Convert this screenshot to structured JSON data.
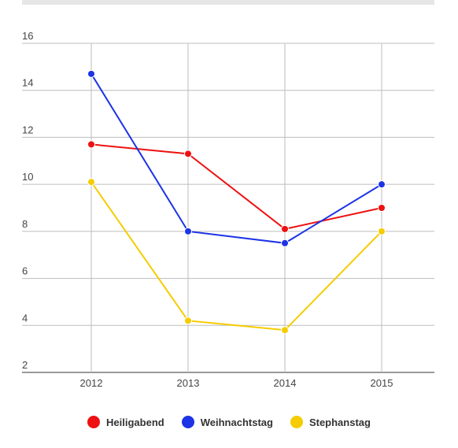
{
  "chart_data": {
    "type": "line",
    "categories": [
      "2012",
      "2013",
      "2014",
      "2015"
    ],
    "series": [
      {
        "name": "Heiligabend",
        "color": "#ee1111",
        "values": [
          11.7,
          11.3,
          8.1,
          9.0
        ]
      },
      {
        "name": "Weihnachtstag",
        "color": "#1c33e6",
        "values": [
          14.7,
          8.0,
          7.5,
          10.0
        ]
      },
      {
        "name": "Stephanstag",
        "color": "#f5cc00",
        "values": [
          10.1,
          4.2,
          3.8,
          8.0
        ]
      }
    ],
    "ylim": [
      2,
      16
    ],
    "yticks": [
      "2",
      "4",
      "6",
      "8",
      "10",
      "12",
      "14",
      "16"
    ],
    "grid": true,
    "legend_position": "bottom"
  }
}
